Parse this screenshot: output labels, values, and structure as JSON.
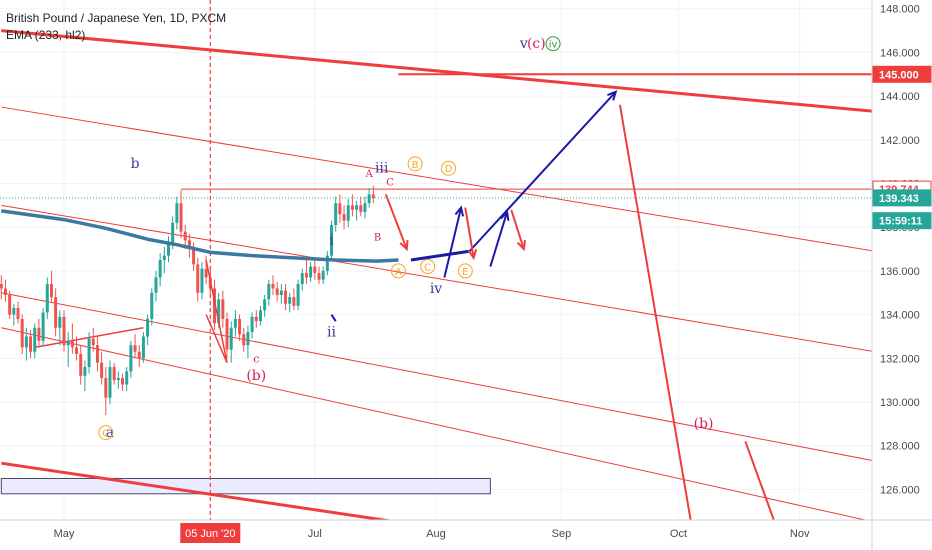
{
  "legend": {
    "symbol_line": "British Pound / Japanese Yen, 1D, PXCM",
    "indicator_line": "EMA (233, hl2)"
  },
  "chart_data": {
    "type": "candlestick",
    "title": "British Pound / Japanese Yen, 1D, PXCM",
    "y_axis": {
      "position": "right",
      "range": [
        124.6,
        148.4
      ],
      "ticks": [
        "148.000",
        "146.000",
        "144.000",
        "142.000",
        "140.000",
        "138.000",
        "136.000",
        "134.000",
        "132.000",
        "130.000",
        "128.000",
        "126.000"
      ]
    },
    "x_axis": {
      "ticks": [
        {
          "label": "May",
          "x": 0
        },
        {
          "label": "05 Jun '20",
          "x": 35,
          "highlight": true
        },
        {
          "label": "Jul",
          "x": 60
        },
        {
          "label": "Aug",
          "x": 89
        },
        {
          "label": "Sep",
          "x": 119
        },
        {
          "label": "Oct",
          "x": 147
        },
        {
          "label": "Nov",
          "x": 176
        }
      ]
    },
    "price_labels": [
      {
        "text": "145.000",
        "value": 145.0,
        "bg": "#ef3d3d",
        "color": "#ffffff"
      },
      {
        "text": "139.744",
        "value": 139.744,
        "bg": "#ffffff",
        "color": "#ef3d3d",
        "border": "#ef3d3d"
      },
      {
        "text": "139.343",
        "value": 139.343,
        "bg": "#26a69a",
        "color": "#ffffff"
      },
      {
        "text": "15:59:11",
        "value": 138.3,
        "bg": "#26a69a",
        "color": "#ffffff"
      }
    ],
    "candles": [
      [
        -15,
        135.4,
        135.8,
        134.7,
        135.2
      ],
      [
        -14,
        135.2,
        135.6,
        134.6,
        134.9
      ],
      [
        -13,
        134.9,
        135.1,
        133.8,
        134.0
      ],
      [
        -12,
        134.0,
        134.5,
        133.5,
        134.3
      ],
      [
        -11,
        134.3,
        134.6,
        133.6,
        133.8
      ],
      [
        -10,
        133.8,
        134.0,
        132.2,
        132.5
      ],
      [
        -9,
        132.5,
        133.4,
        131.9,
        133.0
      ],
      [
        -8,
        133.0,
        133.3,
        132.0,
        132.3
      ],
      [
        -7,
        132.3,
        133.6,
        132.0,
        133.4
      ],
      [
        -6,
        133.4,
        133.8,
        132.5,
        132.8
      ],
      [
        -5,
        132.8,
        134.3,
        132.6,
        134.1
      ],
      [
        -4,
        134.1,
        135.7,
        133.8,
        135.4
      ],
      [
        -3,
        135.4,
        136.0,
        134.6,
        134.8
      ],
      [
        -2,
        134.8,
        135.2,
        133.0,
        133.4
      ],
      [
        -1,
        133.4,
        134.2,
        132.6,
        133.9
      ],
      [
        0,
        133.9,
        134.2,
        132.3,
        132.6
      ],
      [
        1,
        132.6,
        133.2,
        131.6,
        132.8
      ],
      [
        2,
        132.8,
        133.6,
        132.2,
        132.5
      ],
      [
        3,
        132.5,
        133.0,
        131.9,
        132.2
      ],
      [
        4,
        132.2,
        132.6,
        130.8,
        131.2
      ],
      [
        5,
        131.2,
        131.9,
        130.5,
        131.6
      ],
      [
        6,
        131.6,
        133.2,
        131.3,
        132.9
      ],
      [
        7,
        132.9,
        133.4,
        132.3,
        132.6
      ],
      [
        8,
        132.6,
        133.0,
        131.4,
        131.8
      ],
      [
        9,
        131.8,
        132.3,
        130.8,
        131.1
      ],
      [
        10,
        131.1,
        131.6,
        129.4,
        130.2
      ],
      [
        11,
        130.2,
        131.9,
        129.9,
        131.6
      ],
      [
        12,
        131.6,
        131.8,
        130.8,
        131.0
      ],
      [
        13,
        131.0,
        131.4,
        130.6,
        131.1
      ],
      [
        14,
        131.1,
        131.3,
        130.5,
        130.8
      ],
      [
        15,
        130.8,
        131.6,
        130.5,
        131.4
      ],
      [
        16,
        131.4,
        132.8,
        131.1,
        132.6
      ],
      [
        17,
        132.6,
        133.1,
        132.0,
        132.3
      ],
      [
        18,
        132.3,
        132.6,
        131.6,
        132.0
      ],
      [
        19,
        132.0,
        133.2,
        131.8,
        133.0
      ],
      [
        20,
        133.0,
        134.0,
        132.6,
        133.8
      ],
      [
        21,
        133.8,
        135.2,
        133.5,
        135.0
      ],
      [
        22,
        135.0,
        136.0,
        134.6,
        135.7
      ],
      [
        23,
        135.7,
        136.8,
        135.3,
        136.5
      ],
      [
        24,
        136.5,
        137.1,
        135.9,
        136.7
      ],
      [
        25,
        136.7,
        137.6,
        136.4,
        137.3
      ],
      [
        26,
        137.3,
        138.5,
        137.0,
        138.2
      ],
      [
        27,
        138.2,
        139.4,
        137.9,
        139.1
      ],
      [
        28,
        139.1,
        139.7,
        137.5,
        137.8
      ],
      [
        29,
        137.8,
        138.1,
        137.0,
        137.4
      ],
      [
        30,
        137.4,
        137.7,
        136.6,
        137.0
      ],
      [
        31,
        137.0,
        137.3,
        136.0,
        136.3
      ],
      [
        32,
        136.3,
        136.6,
        134.6,
        135.0
      ],
      [
        33,
        135.0,
        136.4,
        134.7,
        136.1
      ],
      [
        34,
        136.1,
        136.7,
        135.4,
        135.7
      ],
      [
        35,
        135.7,
        136.1,
        134.8,
        135.2
      ],
      [
        36,
        135.2,
        135.6,
        133.3,
        133.6
      ],
      [
        37,
        133.6,
        135.0,
        133.4,
        134.7
      ],
      [
        38,
        134.7,
        135.1,
        133.4,
        133.8
      ],
      [
        39,
        133.8,
        134.1,
        132.0,
        132.4
      ],
      [
        40,
        132.4,
        133.7,
        131.8,
        133.4
      ],
      [
        41,
        133.4,
        134.2,
        133.0,
        133.8
      ],
      [
        42,
        133.8,
        134.0,
        132.8,
        133.1
      ],
      [
        43,
        133.1,
        133.4,
        132.3,
        132.6
      ],
      [
        44,
        132.6,
        133.5,
        132.0,
        133.2
      ],
      [
        45,
        133.2,
        134.1,
        132.9,
        133.9
      ],
      [
        46,
        133.9,
        134.2,
        133.4,
        133.7
      ],
      [
        47,
        133.7,
        134.4,
        133.5,
        134.2
      ],
      [
        48,
        134.2,
        134.9,
        133.9,
        134.7
      ],
      [
        49,
        134.7,
        135.6,
        134.4,
        135.4
      ],
      [
        50,
        135.4,
        135.8,
        134.9,
        135.2
      ],
      [
        51,
        135.2,
        135.5,
        134.6,
        134.9
      ],
      [
        52,
        134.9,
        135.4,
        134.5,
        135.1
      ],
      [
        53,
        135.1,
        135.4,
        134.2,
        134.5
      ],
      [
        54,
        134.5,
        135.0,
        134.1,
        134.8
      ],
      [
        55,
        134.8,
        135.2,
        134.2,
        134.4
      ],
      [
        56,
        134.4,
        135.6,
        134.2,
        135.4
      ],
      [
        57,
        135.4,
        136.1,
        135.1,
        135.9
      ],
      [
        58,
        135.9,
        136.5,
        135.4,
        135.7
      ],
      [
        59,
        135.7,
        136.4,
        135.5,
        136.2
      ],
      [
        60,
        136.2,
        136.5,
        135.6,
        135.9
      ],
      [
        61,
        135.9,
        136.2,
        135.4,
        135.6
      ],
      [
        62,
        135.6,
        136.2,
        135.4,
        136.0
      ],
      [
        63,
        136.0,
        136.9,
        135.8,
        136.7
      ],
      [
        64,
        136.7,
        138.3,
        136.5,
        138.1
      ],
      [
        65,
        138.1,
        139.4,
        137.8,
        139.1
      ],
      [
        66,
        139.1,
        139.5,
        138.2,
        138.6
      ],
      [
        67,
        138.6,
        139.0,
        137.9,
        138.3
      ],
      [
        68,
        138.3,
        139.3,
        138.0,
        139.0
      ],
      [
        69,
        139.0,
        139.5,
        138.5,
        138.8
      ],
      [
        70,
        138.8,
        139.2,
        138.3,
        139.0
      ],
      [
        71,
        139.0,
        139.4,
        138.5,
        138.7
      ],
      [
        72,
        138.7,
        139.4,
        138.4,
        139.1
      ],
      [
        73,
        139.1,
        139.8,
        138.9,
        139.5
      ],
      [
        74,
        139.5,
        139.9,
        139.1,
        139.34
      ]
    ],
    "ema233": [
      [
        -15,
        138.75
      ],
      [
        0,
        138.35
      ],
      [
        10,
        137.95
      ],
      [
        20,
        137.45
      ],
      [
        27,
        137.2
      ],
      [
        35,
        136.85
      ],
      [
        45,
        136.7
      ],
      [
        55,
        136.6
      ],
      [
        65,
        136.5
      ],
      [
        75,
        136.45
      ],
      [
        80,
        136.5
      ]
    ],
    "red_lines": [
      {
        "from": [
          -15,
          147.0
        ],
        "to": [
          194,
          143.3
        ],
        "width": 3
      },
      {
        "from": [
          -15,
          143.5
        ],
        "to": [
          194,
          136.9
        ],
        "width": 1
      },
      {
        "from": [
          -15,
          139.0
        ],
        "to": [
          194,
          132.3
        ],
        "width": 1
      },
      {
        "from": [
          -15,
          135.0
        ],
        "to": [
          194,
          127.3
        ],
        "width": 1
      },
      {
        "from": [
          -15,
          133.4
        ],
        "to": [
          194,
          124.5
        ],
        "width": 1
      },
      {
        "from": [
          -15,
          127.2
        ],
        "to": [
          80,
          124.5
        ],
        "width": 3
      },
      {
        "from": [
          28,
          139.744
        ],
        "to": [
          194,
          139.744
        ],
        "width": 1
      },
      {
        "from": [
          80,
          145.0
        ],
        "to": [
          194,
          145.0
        ],
        "width": 2
      }
    ],
    "trend_line": {
      "from": [
        -7,
        132.5
      ],
      "to": [
        19,
        133.4
      ]
    },
    "wave_path_red": [
      [
        34,
        136.5
      ],
      [
        39,
        131.8
      ],
      [
        34,
        134.0
      ]
    ],
    "projection": {
      "blue_path": [
        [
          83,
          136.5
        ],
        [
          97,
          136.9
        ],
        [
          132,
          144.2
        ]
      ],
      "blue_arrows": [
        [
          [
            91,
            135.7
          ],
          [
            95,
            138.9
          ]
        ],
        [
          [
            102,
            136.2
          ],
          [
            106,
            138.7
          ]
        ]
      ],
      "red_arrows": [
        [
          [
            77,
            139.5
          ],
          [
            82,
            137.0
          ]
        ],
        [
          [
            96,
            138.9
          ],
          [
            98,
            136.6
          ]
        ],
        [
          [
            107,
            138.8
          ],
          [
            110,
            137.0
          ]
        ]
      ],
      "red_drop": [
        [
          133,
          143.6
        ],
        [
          150,
          124.5
        ]
      ],
      "red_drop2": [
        [
          163,
          128.2
        ],
        [
          170,
          124.5
        ]
      ],
      "small_blue": [
        [
          64,
          134.0
        ],
        [
          65,
          133.7
        ]
      ]
    },
    "wave_labels": [
      {
        "text": "b",
        "x": 17,
        "y": 140.7,
        "color": "#3a3aa0",
        "size": 14
      },
      {
        "text": "a",
        "x": 11,
        "y": 128.4,
        "color": "#3a3aa0",
        "size": 14
      },
      {
        "text": "(b)",
        "x": 46,
        "y": 131.0,
        "color": "#d81b60",
        "size": 14
      },
      {
        "text": "c",
        "x": 46,
        "y": 131.8,
        "color": "#d81b60",
        "size": 11
      },
      {
        "text": "i",
        "x": 64,
        "y": 137.2,
        "color": "#3a3aa0",
        "size": 14
      },
      {
        "text": "ii",
        "x": 64,
        "y": 133.0,
        "color": "#3a3aa0",
        "size": 14
      },
      {
        "text": "iii",
        "x": 76,
        "y": 140.5,
        "color": "#3a3aa0",
        "size": 14
      },
      {
        "text": "A",
        "x": 73,
        "y": 140.3,
        "color": "#d81b60",
        "size": 10
      },
      {
        "text": "B",
        "x": 75,
        "y": 137.4,
        "color": "#d81b60",
        "size": 10
      },
      {
        "text": "C",
        "x": 78,
        "y": 139.9,
        "color": "#d81b60",
        "size": 10
      },
      {
        "text": "iv",
        "x": 89,
        "y": 135.0,
        "color": "#3a3aa0",
        "size": 14
      },
      {
        "text": "v",
        "x": 110,
        "y": 146.2,
        "color": "#3a3aa0",
        "size": 14
      },
      {
        "text": "(c)",
        "x": 113,
        "y": 146.2,
        "color": "#d81b60",
        "size": 14
      },
      {
        "text": "(b)",
        "x": 153,
        "y": 128.8,
        "color": "#d81b60",
        "size": 14
      }
    ],
    "circled_labels": [
      {
        "text": "C",
        "x": 10,
        "y": 128.6,
        "color": "#f5a623"
      },
      {
        "text": "B",
        "x": 84,
        "y": 140.9,
        "color": "#f5a623"
      },
      {
        "text": "D",
        "x": 92,
        "y": 140.7,
        "color": "#f5a623"
      },
      {
        "text": "A",
        "x": 80,
        "y": 136.0,
        "color": "#f5a623"
      },
      {
        "text": "C",
        "x": 87,
        "y": 136.2,
        "color": "#f5a623"
      },
      {
        "text": "E",
        "x": 96,
        "y": 136.0,
        "color": "#f5a623"
      },
      {
        "text": "iv",
        "x": 117,
        "y": 146.4,
        "color": "#2e9e3e"
      }
    ],
    "rect_zone": {
      "x1": -15,
      "x2": 102,
      "y1": 126.5,
      "y2": 125.8,
      "fill": "#eceaff",
      "stroke": "#4a4a6a"
    },
    "dotted_line_value": 139.343,
    "vline_x": 35
  },
  "colors": {
    "up": "#26a69a",
    "down": "#ef5350",
    "ema": "#3c78a0",
    "red": "#ef3d3d",
    "blue": "#1a1aa8",
    "grid": "#f0f3fa",
    "axis_text": "#4a4a4a"
  }
}
